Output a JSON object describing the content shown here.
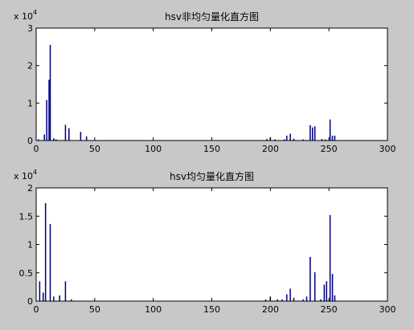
{
  "background_color": "#c8c8c8",
  "bar_color": "#000080",
  "chart_data": [
    {
      "type": "bar",
      "title": "hsv非均匀量化直方图",
      "xlim": [
        0,
        300
      ],
      "ylim": [
        0,
        30000
      ],
      "xticks": [
        0,
        50,
        100,
        150,
        200,
        250,
        300
      ],
      "yticks": [
        0,
        1,
        2,
        3
      ],
      "exponent_label": "x 10",
      "exponent_power": "4",
      "bars": [
        {
          "x": 2,
          "y": 300
        },
        {
          "x": 7,
          "y": 1600
        },
        {
          "x": 9,
          "y": 10800
        },
        {
          "x": 11,
          "y": 16200
        },
        {
          "x": 12,
          "y": 25500
        },
        {
          "x": 15,
          "y": 600
        },
        {
          "x": 17,
          "y": 300
        },
        {
          "x": 25,
          "y": 4200
        },
        {
          "x": 28,
          "y": 3300
        },
        {
          "x": 38,
          "y": 2300
        },
        {
          "x": 43,
          "y": 1100
        },
        {
          "x": 197,
          "y": 400
        },
        {
          "x": 200,
          "y": 900
        },
        {
          "x": 204,
          "y": 300
        },
        {
          "x": 212,
          "y": 300
        },
        {
          "x": 214,
          "y": 1300
        },
        {
          "x": 217,
          "y": 1800
        },
        {
          "x": 220,
          "y": 500
        },
        {
          "x": 228,
          "y": 300
        },
        {
          "x": 234,
          "y": 4100
        },
        {
          "x": 236,
          "y": 3500
        },
        {
          "x": 238,
          "y": 3800
        },
        {
          "x": 244,
          "y": 400
        },
        {
          "x": 247,
          "y": 300
        },
        {
          "x": 251,
          "y": 5600
        },
        {
          "x": 253,
          "y": 1300
        },
        {
          "x": 255,
          "y": 1300
        }
      ]
    },
    {
      "type": "bar",
      "title": "hsv均匀量化直方图",
      "xlim": [
        0,
        300
      ],
      "ylim": [
        0,
        20000
      ],
      "xticks": [
        0,
        50,
        100,
        150,
        200,
        250,
        300
      ],
      "yticks": [
        0,
        0.5,
        1,
        1.5,
        2
      ],
      "exponent_label": "x 10",
      "exponent_power": "4",
      "bars": [
        {
          "x": 3,
          "y": 3500
        },
        {
          "x": 6,
          "y": 1500
        },
        {
          "x": 8,
          "y": 17300
        },
        {
          "x": 12,
          "y": 13600
        },
        {
          "x": 15,
          "y": 800
        },
        {
          "x": 20,
          "y": 1000
        },
        {
          "x": 25,
          "y": 3500
        },
        {
          "x": 30,
          "y": 300
        },
        {
          "x": 196,
          "y": 300
        },
        {
          "x": 200,
          "y": 800
        },
        {
          "x": 206,
          "y": 300
        },
        {
          "x": 210,
          "y": 300
        },
        {
          "x": 214,
          "y": 1200
        },
        {
          "x": 217,
          "y": 2200
        },
        {
          "x": 220,
          "y": 600
        },
        {
          "x": 228,
          "y": 300
        },
        {
          "x": 231,
          "y": 800
        },
        {
          "x": 234,
          "y": 7800
        },
        {
          "x": 238,
          "y": 5100
        },
        {
          "x": 243,
          "y": 300
        },
        {
          "x": 246,
          "y": 2900
        },
        {
          "x": 248,
          "y": 3500
        },
        {
          "x": 251,
          "y": 15200
        },
        {
          "x": 253,
          "y": 4800
        },
        {
          "x": 255,
          "y": 1000
        }
      ]
    }
  ]
}
